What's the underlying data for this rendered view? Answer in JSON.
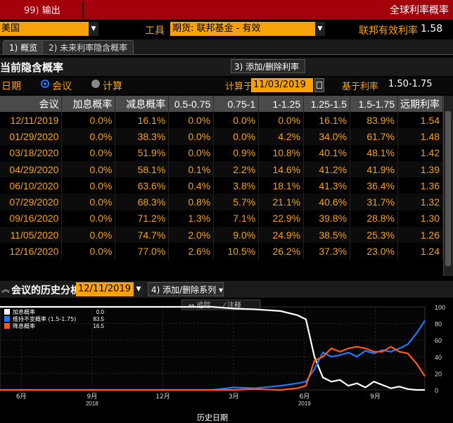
{
  "header": {
    "left_code": "99)",
    "left_label": "输出",
    "right_title": "全球利率概率"
  },
  "row2": {
    "country": "美国",
    "tool_label": "工具",
    "instrument": "期货: 联邦基金 - 有效",
    "eff_rate_label": "联邦有效利率",
    "eff_rate_value": "1.58"
  },
  "tabs": [
    {
      "label": "1) 概览"
    },
    {
      "label": "2) 未来利率隐含概率"
    }
  ],
  "section1": {
    "title": "当前隐含概率",
    "add_rate": "3) 添加/删除利率 ▾",
    "date_label": "日期",
    "opt_meeting": "会议",
    "opt_calc": "计算",
    "calc_label": "计算于",
    "calc_date": "11/03/2019",
    "base_label": "基于利率",
    "base_value": "1.50-1.75"
  },
  "table": {
    "headers": [
      "会议",
      "加息概率",
      "减息概率",
      "0.5-0.75",
      "0.75-1",
      "1-1.25",
      "1.25-1.5",
      "1.5-1.75",
      "远期利率"
    ],
    "rows": [
      [
        "12/11/2019",
        "0.0%",
        "16.1%",
        "0.0%",
        "0.0%",
        "0.0%",
        "16.1%",
        "83.9%",
        "1.54"
      ],
      [
        "01/29/2020",
        "0.0%",
        "38.3%",
        "0.0%",
        "0.0%",
        "4.2%",
        "34.0%",
        "61.7%",
        "1.48"
      ],
      [
        "03/18/2020",
        "0.0%",
        "51.9%",
        "0.0%",
        "0.9%",
        "10.8%",
        "40.1%",
        "48.1%",
        "1.42"
      ],
      [
        "04/29/2020",
        "0.0%",
        "58.1%",
        "0.1%",
        "2.2%",
        "14.6%",
        "41.2%",
        "41.9%",
        "1.39"
      ],
      [
        "06/10/2020",
        "0.0%",
        "63.6%",
        "0.4%",
        "3.8%",
        "18.1%",
        "41.3%",
        "36.4%",
        "1.36"
      ],
      [
        "07/29/2020",
        "0.0%",
        "68.3%",
        "0.8%",
        "5.7%",
        "21.1%",
        "40.6%",
        "31.7%",
        "1.32"
      ],
      [
        "09/16/2020",
        "0.0%",
        "71.2%",
        "1.3%",
        "7.1%",
        "22.9%",
        "39.8%",
        "28.8%",
        "1.30"
      ],
      [
        "11/05/2020",
        "0.0%",
        "74.7%",
        "2.0%",
        "9.0%",
        "24.9%",
        "38.5%",
        "25.3%",
        "1.26"
      ],
      [
        "12/16/2020",
        "0.0%",
        "77.0%",
        "2.6%",
        "10.5%",
        "26.2%",
        "37.3%",
        "23.0%",
        "1.24"
      ]
    ]
  },
  "section2": {
    "title": "会议的历史分析",
    "date": "12/11/2019",
    "add_series": "4) 添加/删除系列 ▾"
  },
  "chart_toolbar": {
    "track": "追踪",
    "annotate": "注释"
  },
  "chart_data": {
    "type": "line",
    "xlabel": "历史日期",
    "ylim": [
      0,
      100
    ],
    "y_ticks": [
      "100",
      "80",
      "60",
      "40",
      "20",
      "0"
    ],
    "x_tick_labels": [
      {
        "m": "6月",
        "y": ""
      },
      {
        "m": "9月",
        "y": "2018"
      },
      {
        "m": "12月",
        "y": ""
      },
      {
        "m": "3月",
        "y": ""
      },
      {
        "m": "6月",
        "y": "2019"
      },
      {
        "m": "9月",
        "y": ""
      }
    ],
    "legend": [
      {
        "label": "加息概率",
        "value": "0.0",
        "color": "#ffffff"
      },
      {
        "label": "维持不变概率 (1.5-1.75)",
        "value": "83.5",
        "color": "#1e78ff"
      },
      {
        "label": "降息概率",
        "value": "16.5",
        "color": "#ff5a14"
      }
    ],
    "series": [
      {
        "name": "加息概率",
        "color": "#ffffff",
        "x": [
          0,
          0.5,
          0.55,
          0.6,
          0.66,
          0.7,
          0.72,
          0.74,
          0.76,
          0.78,
          0.8,
          0.82,
          0.84,
          0.86,
          0.88,
          0.9,
          0.92,
          0.94,
          0.96,
          0.98,
          1
        ],
        "values": [
          100,
          100,
          98,
          97,
          95,
          90,
          85,
          40,
          15,
          10,
          12,
          5,
          8,
          3,
          10,
          6,
          2,
          4,
          1,
          0,
          0
        ]
      },
      {
        "name": "维持不变概率 (1.5-1.75)",
        "color": "#1e78ff",
        "x": [
          0,
          0.5,
          0.55,
          0.6,
          0.66,
          0.7,
          0.72,
          0.74,
          0.76,
          0.78,
          0.8,
          0.82,
          0.84,
          0.86,
          0.88,
          0.9,
          0.92,
          0.94,
          0.96,
          0.98,
          1
        ],
        "values": [
          0,
          0,
          3,
          2,
          5,
          8,
          10,
          25,
          45,
          40,
          42,
          45,
          40,
          47,
          44,
          48,
          46,
          50,
          55,
          68,
          83.5
        ]
      },
      {
        "name": "降息概率",
        "color": "#ff5a14",
        "x": [
          0,
          0.5,
          0.55,
          0.6,
          0.66,
          0.7,
          0.72,
          0.74,
          0.76,
          0.78,
          0.8,
          0.82,
          0.84,
          0.86,
          0.88,
          0.9,
          0.92,
          0.94,
          0.96,
          0.98,
          1
        ],
        "values": [
          0,
          0,
          0,
          1,
          0,
          2,
          5,
          35,
          40,
          50,
          46,
          50,
          52,
          50,
          46,
          46,
          52,
          46,
          44,
          32,
          16.5
        ]
      }
    ]
  }
}
